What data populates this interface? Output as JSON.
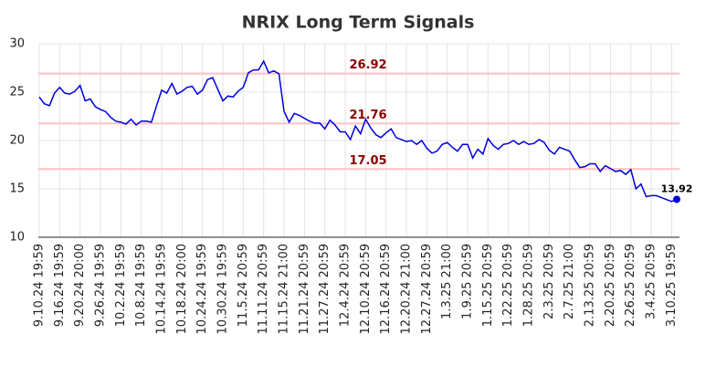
{
  "chart_data": {
    "type": "line",
    "title": "NRIX Long Term Signals",
    "categories": [
      "9.10.24 19:59",
      null,
      null,
      null,
      "9.16.24 19:59",
      null,
      null,
      null,
      "9.20.24 20:00",
      null,
      null,
      null,
      "9.26.24 19:59",
      null,
      null,
      null,
      "10.2.24 19:59",
      null,
      null,
      null,
      "10.8.24 19:59",
      null,
      null,
      null,
      "10.14.24 19:59",
      null,
      null,
      null,
      "10.18.24 20:00",
      null,
      null,
      null,
      "10.24.24 19:59",
      null,
      null,
      null,
      "10.30.24 19:59",
      null,
      null,
      null,
      "11.5.24 20:59",
      null,
      null,
      null,
      "11.11.24 20:59",
      null,
      null,
      null,
      "11.15.24 21:00",
      null,
      null,
      null,
      "11.21.24 20:59",
      null,
      null,
      null,
      "11.27.24 20:59",
      null,
      null,
      null,
      "12.4.24 20:59",
      null,
      null,
      null,
      "12.10.24 20:59",
      null,
      null,
      null,
      "12.16.24 20:59",
      null,
      null,
      null,
      "12.20.24 21:00",
      null,
      null,
      null,
      "12.27.24 20:59",
      null,
      null,
      null,
      "1.3.25 21:00",
      null,
      null,
      null,
      "1.9.25 20:59",
      null,
      null,
      null,
      "1.15.25 20:59",
      null,
      null,
      null,
      "1.22.25 20:59",
      null,
      null,
      null,
      "1.28.25 20:59",
      null,
      null,
      null,
      "2.3.25 20:59",
      null,
      null,
      null,
      "2.7.25 21:00",
      null,
      null,
      null,
      "2.13.25 20:59",
      null,
      null,
      null,
      "2.20.25 20:59",
      null,
      null,
      null,
      "2.26.25 20:59",
      null,
      null,
      null,
      "3.4.25 20:59",
      null,
      null,
      null,
      "3.10.25 19:59",
      null
    ],
    "series": [
      {
        "color": "#0000dd",
        "values": [
          24.5,
          23.8,
          23.6,
          24.9,
          25.5,
          24.9,
          24.8,
          25.1,
          25.7,
          24.1,
          24.3,
          23.5,
          23.2,
          23.0,
          22.4,
          22.0,
          21.9,
          21.7,
          22.2,
          21.6,
          22.0,
          22.0,
          21.9,
          23.6,
          25.2,
          24.9,
          25.9,
          24.8,
          25.1,
          25.5,
          25.6,
          24.8,
          25.2,
          26.3,
          26.5,
          25.3,
          24.1,
          24.6,
          24.5,
          25.1,
          25.5,
          27.0,
          27.3,
          27.3,
          28.2,
          27.0,
          27.2,
          26.9,
          23.0,
          21.9,
          22.8,
          22.6,
          22.3,
          22.0,
          21.8,
          21.8,
          21.2,
          22.1,
          21.6,
          20.9,
          20.9,
          20.1,
          21.5,
          20.7,
          22.2,
          21.3,
          20.6,
          20.3,
          20.8,
          21.2,
          20.3,
          20.1,
          19.9,
          20.0,
          19.6,
          20.0,
          19.2,
          18.7,
          18.9,
          19.6,
          19.8,
          19.3,
          18.9,
          19.6,
          19.6,
          18.2,
          19.1,
          18.6,
          20.2,
          19.5,
          19.1,
          19.6,
          19.7,
          20.0,
          19.6,
          19.9,
          19.6,
          19.7,
          20.1,
          19.8,
          19.0,
          18.6,
          19.3,
          19.1,
          18.9,
          18.0,
          17.2,
          17.3,
          17.6,
          17.6,
          16.8,
          17.4,
          17.1,
          16.8,
          16.9,
          16.5,
          17.0,
          15.0,
          15.5,
          14.2,
          14.3,
          14.3,
          14.1,
          13.9,
          13.7,
          13.92
        ]
      }
    ],
    "reference_lines": [
      26.92,
      21.76,
      17.05
    ],
    "reference_color": "#ffc0c0",
    "reference_label_color": "#8b0000",
    "ylim": [
      10,
      30
    ],
    "yticks": [
      10,
      15,
      20,
      25,
      30
    ],
    "grid": true
  }
}
